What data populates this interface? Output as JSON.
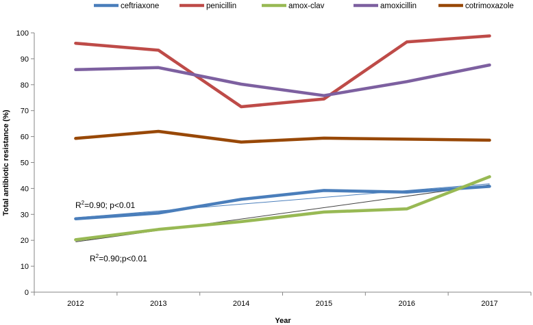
{
  "chart_data": {
    "type": "line",
    "title": "",
    "xlabel": "Year",
    "ylabel": "Total antibiotic resistance (%)",
    "categories": [
      "2012",
      "2013",
      "2014",
      "2015",
      "2016",
      "2017"
    ],
    "ylim": [
      0,
      100
    ],
    "yticks": [
      0,
      10,
      20,
      30,
      40,
      50,
      60,
      70,
      80,
      90,
      100
    ],
    "grid": false,
    "legend_position": "top",
    "series": [
      {
        "name": "ceftriaxone",
        "color": "#4a7ebb",
        "values": [
          28.3,
          30.5,
          35.8,
          39.2,
          38.6,
          40.8
        ]
      },
      {
        "name": "penicillin",
        "color": "#be4b48",
        "values": [
          96,
          93.3,
          71.5,
          74.5,
          96.5,
          98.8
        ]
      },
      {
        "name": "amox-clav",
        "color": "#98b954",
        "values": [
          20.2,
          24.2,
          27.2,
          30.9,
          32.1,
          44.5
        ]
      },
      {
        "name": "amoxicillin",
        "color": "#7d60a0",
        "values": [
          85.8,
          86.6,
          80.2,
          75.8,
          81.2,
          87.6
        ]
      },
      {
        "name": "cotrimoxazole",
        "color": "#984807",
        "values": [
          59.3,
          62,
          57.9,
          59.4,
          59,
          58.6
        ]
      }
    ],
    "trendlines": [
      {
        "series": "ceftriaxone",
        "color": "#4a7ebb",
        "start": 28.7,
        "end": 41.8
      },
      {
        "series": "amox-clav",
        "color": "#404040",
        "start": 19.4,
        "end": 41.4
      }
    ],
    "annotations": [
      {
        "id": "ceftriaxone-r2",
        "r_label": "R",
        "superscript": "2",
        "rest": "=0.90; p<0.01"
      },
      {
        "id": "amoxclav-r2",
        "r_label": "R",
        "superscript": "2",
        "rest": "=0.90;p<0.01"
      }
    ]
  }
}
